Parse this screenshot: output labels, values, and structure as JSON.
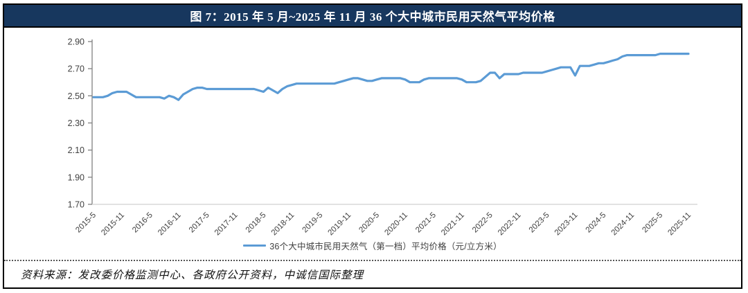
{
  "header": {
    "title": "图 7：2015 年 5 月~2025 年 11 月 36 个大中城市民用天然气平均价格"
  },
  "footer": {
    "source": "资料来源：发改委价格监测中心、各政府公开资料，中诚信国际整理"
  },
  "colors": {
    "title_bar_bg": "#17375E",
    "title_text": "#FFFFFF",
    "series_line": "#5B9BD5",
    "y_axis": "#808080",
    "x_axis": "#D9D9D9",
    "tick_label": "#404040",
    "frame_border": "#000000"
  },
  "chart_data": {
    "type": "line",
    "title": "图 7：2015 年 5 月~2025 年 11 月 36 个大中城市民用天然气平均价格",
    "xlabel": "",
    "ylabel": "",
    "ylim": [
      1.7,
      2.9
    ],
    "y_ticks": [
      1.7,
      1.9,
      2.1,
      2.3,
      2.5,
      2.7,
      2.9
    ],
    "grid": false,
    "legend_position": "bottom",
    "x_start": "2015-5",
    "x_end": "2025-11",
    "x_step_months": 1,
    "x_tick_every": 6,
    "x_tick_labels": [
      "2015-5",
      "2015-11",
      "2016-5",
      "2016-11",
      "2017-5",
      "2017-11",
      "2018-5",
      "2018-11",
      "2019-5",
      "2019-11",
      "2020-5",
      "2020-11",
      "2021-5",
      "2021-11",
      "2022-5",
      "2022-11",
      "2023-5",
      "2023-11",
      "2024-5",
      "2024-11",
      "2025-5",
      "2025-11"
    ],
    "series": [
      {
        "name": "36个大中城市民用天然气（第一档）平均价格（元/立方米）",
        "color": "#5B9BD5",
        "values": [
          2.49,
          2.49,
          2.49,
          2.5,
          2.52,
          2.53,
          2.53,
          2.53,
          2.51,
          2.49,
          2.49,
          2.49,
          2.49,
          2.49,
          2.49,
          2.48,
          2.5,
          2.49,
          2.47,
          2.51,
          2.53,
          2.55,
          2.56,
          2.56,
          2.55,
          2.55,
          2.55,
          2.55,
          2.55,
          2.55,
          2.55,
          2.55,
          2.55,
          2.55,
          2.55,
          2.54,
          2.53,
          2.56,
          2.54,
          2.52,
          2.55,
          2.57,
          2.58,
          2.59,
          2.59,
          2.59,
          2.59,
          2.59,
          2.59,
          2.59,
          2.59,
          2.59,
          2.6,
          2.61,
          2.62,
          2.63,
          2.63,
          2.62,
          2.61,
          2.61,
          2.62,
          2.63,
          2.63,
          2.63,
          2.63,
          2.63,
          2.62,
          2.6,
          2.6,
          2.6,
          2.62,
          2.63,
          2.63,
          2.63,
          2.63,
          2.63,
          2.63,
          2.63,
          2.62,
          2.6,
          2.6,
          2.6,
          2.61,
          2.64,
          2.67,
          2.67,
          2.63,
          2.66,
          2.66,
          2.66,
          2.66,
          2.67,
          2.67,
          2.67,
          2.67,
          2.67,
          2.68,
          2.69,
          2.7,
          2.71,
          2.71,
          2.71,
          2.65,
          2.72,
          2.72,
          2.72,
          2.73,
          2.74,
          2.74,
          2.75,
          2.76,
          2.77,
          2.79,
          2.8,
          2.8,
          2.8,
          2.8,
          2.8,
          2.8,
          2.8,
          2.81,
          2.81,
          2.81,
          2.81,
          2.81,
          2.81,
          2.81
        ]
      }
    ]
  }
}
